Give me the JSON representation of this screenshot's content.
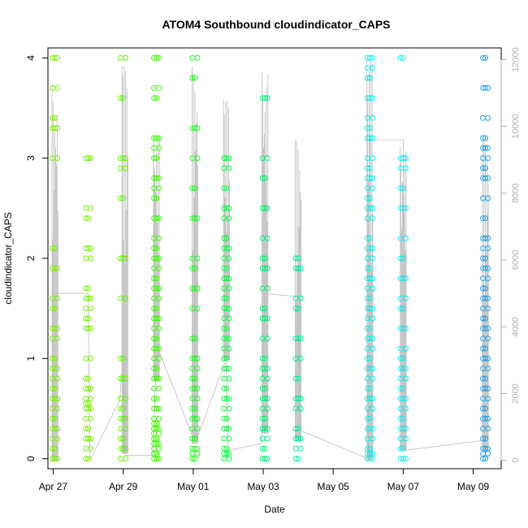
{
  "chart_data": {
    "type": "scatter",
    "title": "ATOM4 Southbound cloudindicator_CAPS",
    "xlabel": "Date",
    "ylabel": "cloudindicator_CAPS",
    "xlim": [
      -0.15,
      12.8
    ],
    "ylim": [
      -0.1,
      4.1
    ],
    "x_unit": "days since Apr 27",
    "x_ticks": [
      {
        "value": 0,
        "label": "Apr 27"
      },
      {
        "value": 2,
        "label": "Apr 29"
      },
      {
        "value": 4,
        "label": "May 01"
      },
      {
        "value": 6,
        "label": "May 03"
      },
      {
        "value": 8,
        "label": "May 05"
      },
      {
        "value": 10,
        "label": "May 07"
      },
      {
        "value": 12,
        "label": "May 09"
      }
    ],
    "y_ticks": [
      0,
      1,
      2,
      3,
      4
    ],
    "y2_ticks": [
      0,
      2000,
      4000,
      6000,
      8000,
      10000,
      12000
    ],
    "y2lim": [
      -250,
      12350
    ],
    "clusters": [
      {
        "x": 0.05,
        "color": "#7fee00",
        "values": [
          0,
          0.1,
          0.2,
          0.3,
          0.4,
          0.5,
          0.6,
          0.7,
          0.8,
          0.9,
          1.0,
          1.2,
          1.3,
          1.5,
          1.6,
          1.9,
          2.1,
          3.0,
          3.3,
          3.4,
          3.7,
          4.0
        ]
      },
      {
        "x": 1.0,
        "color": "#78f000",
        "values": [
          0,
          0.1,
          0.2,
          0.3,
          0.4,
          0.5,
          0.55,
          0.6,
          0.7,
          0.8,
          1.0,
          1.3,
          1.4,
          1.5,
          1.6,
          1.7,
          2.0,
          2.1,
          2.4,
          2.5,
          3.0
        ]
      },
      {
        "x": 2.0,
        "color": "#5ef500",
        "values": [
          0,
          0.1,
          0.2,
          0.3,
          0.4,
          0.5,
          0.6,
          0.8,
          1.0,
          1.6,
          2.0,
          2.6,
          2.9,
          3.0,
          3.6,
          4.0
        ]
      },
      {
        "x": 2.95,
        "color": "#3cf800",
        "values": [
          0,
          0.05,
          0.1,
          0.15,
          0.2,
          0.25,
          0.3,
          0.35,
          0.4,
          0.5,
          0.6,
          0.7,
          0.8,
          0.9,
          1.0,
          1.1,
          1.2,
          1.3,
          1.4,
          1.5,
          1.6,
          1.7,
          1.8,
          1.9,
          2.0,
          2.1,
          2.2,
          2.4,
          2.6,
          2.7,
          2.8,
          3.0,
          3.1,
          3.2,
          3.6,
          3.7,
          4.0
        ]
      },
      {
        "x": 4.05,
        "color": "#1cfa1c",
        "values": [
          0,
          0.05,
          0.1,
          0.2,
          0.3,
          0.4,
          0.5,
          0.6,
          0.7,
          0.8,
          0.9,
          1.0,
          1.2,
          1.5,
          1.7,
          1.9,
          2.0,
          2.4,
          2.7,
          3.0,
          3.3,
          3.8,
          4.0
        ]
      },
      {
        "x": 4.95,
        "color": "#10f846",
        "values": [
          0,
          0.05,
          0.1,
          0.2,
          0.3,
          0.4,
          0.5,
          0.6,
          0.7,
          0.8,
          0.9,
          1.0,
          1.1,
          1.2,
          1.3,
          1.4,
          1.5,
          1.6,
          1.7,
          1.8,
          1.9,
          2.0,
          2.1,
          2.2,
          2.4,
          2.5,
          2.7,
          2.9,
          3.0
        ]
      },
      {
        "x": 6.05,
        "color": "#00f07a",
        "values": [
          0,
          0.1,
          0.2,
          0.3,
          0.4,
          0.5,
          0.6,
          0.7,
          0.8,
          0.9,
          1.0,
          1.2,
          1.4,
          1.5,
          1.7,
          1.9,
          2.0,
          2.2,
          2.5,
          2.8,
          3.0,
          3.6
        ]
      },
      {
        "x": 7.0,
        "color": "#00ec9e",
        "values": [
          0,
          0.1,
          0.2,
          0.3,
          0.5,
          0.6,
          0.8,
          1.0,
          1.2,
          1.5,
          1.6,
          1.9,
          2.0
        ]
      },
      {
        "x": 9.05,
        "color": "#00f0f0",
        "values": [
          0,
          0.05,
          0.1,
          0.2,
          0.3,
          0.4,
          0.5,
          0.6,
          0.7,
          0.8,
          0.9,
          1.0,
          1.1,
          1.2,
          1.3,
          1.4,
          1.5,
          1.6,
          1.7,
          1.8,
          1.9,
          2.0,
          2.1,
          2.2,
          2.4,
          2.5,
          2.6,
          2.7,
          2.8,
          2.9,
          3.0,
          3.2,
          3.3,
          3.4,
          3.6,
          3.8,
          3.9,
          4.0
        ]
      },
      {
        "x": 10.0,
        "color": "#10e8f0",
        "values": [
          0,
          0.1,
          0.2,
          0.3,
          0.4,
          0.5,
          0.6,
          0.7,
          0.8,
          0.9,
          1.0,
          1.1,
          1.3,
          1.5,
          1.6,
          1.8,
          2.0,
          2.2,
          2.5,
          2.7,
          2.9,
          3.0,
          4.0
        ]
      },
      {
        "x": 12.35,
        "color": "#1aa0f0",
        "values": [
          0,
          0.05,
          0.1,
          0.2,
          0.3,
          0.4,
          0.5,
          0.6,
          0.7,
          0.8,
          0.9,
          1.0,
          1.1,
          1.2,
          1.3,
          1.4,
          1.5,
          1.6,
          1.7,
          1.8,
          1.9,
          2.0,
          2.1,
          2.2,
          2.4,
          2.6,
          2.8,
          2.9,
          3.0,
          3.1,
          3.2,
          3.4,
          3.7,
          4.0
        ]
      }
    ],
    "series2_name": "secondary series (right axis)",
    "series2_color": "#bdbdbd",
    "series2_spikes": [
      {
        "x": 0.05,
        "low": 0,
        "high": 11200
      },
      {
        "x": 2.05,
        "low": 200,
        "high": 11800
      },
      {
        "x": 2.95,
        "low": 2400,
        "high": 9700
      },
      {
        "x": 4.05,
        "low": 500,
        "high": 11800
      },
      {
        "x": 4.95,
        "low": 3000,
        "high": 10800
      },
      {
        "x": 6.05,
        "low": 800,
        "high": 11600
      },
      {
        "x": 7.0,
        "low": 600,
        "high": 9600
      },
      {
        "x": 9.05,
        "low": 0,
        "high": 12000
      },
      {
        "x": 10.0,
        "low": 300,
        "high": 9400
      },
      {
        "x": 12.35,
        "low": 300,
        "high": 9600
      }
    ],
    "series2_path": [
      [
        0.0,
        0
      ],
      [
        0.05,
        5000
      ],
      [
        1.0,
        5000
      ],
      [
        1.05,
        0
      ],
      [
        1.9,
        1800
      ],
      [
        2.0,
        3200
      ],
      [
        2.05,
        150
      ],
      [
        2.85,
        150
      ],
      [
        2.95,
        3200
      ],
      [
        3.0,
        3200
      ],
      [
        3.05,
        3200
      ],
      [
        3.95,
        800
      ],
      [
        4.05,
        500
      ],
      [
        4.9,
        2900
      ],
      [
        4.95,
        2900
      ],
      [
        5.0,
        300
      ],
      [
        5.95,
        500
      ],
      [
        6.05,
        5000
      ],
      [
        7.0,
        4900
      ],
      [
        7.05,
        900
      ],
      [
        9.0,
        50
      ],
      [
        9.05,
        9600
      ],
      [
        10.0,
        9600
      ],
      [
        10.05,
        300
      ],
      [
        12.3,
        600
      ],
      [
        12.35,
        600
      ]
    ]
  }
}
